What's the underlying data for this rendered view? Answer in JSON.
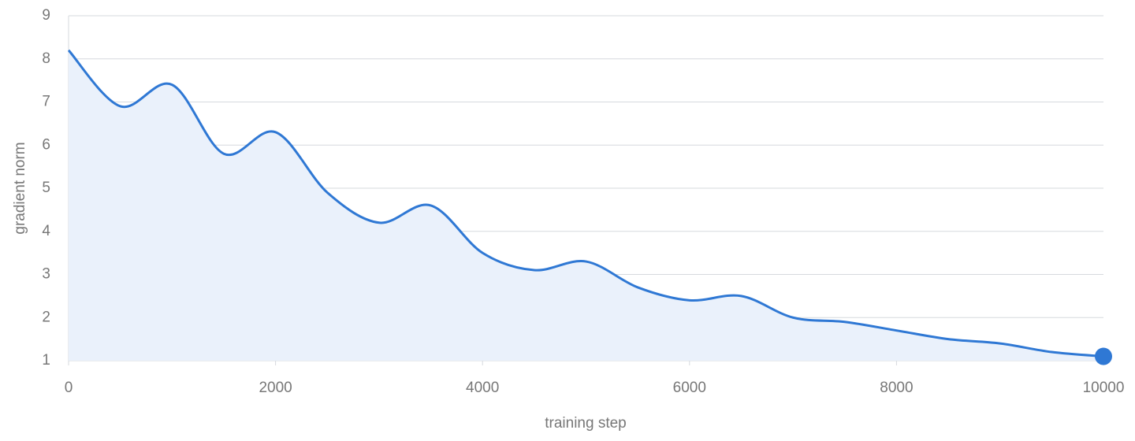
{
  "chart_data": {
    "type": "area",
    "xlabel": "training step",
    "ylabel": "gradient norm",
    "x": [
      0,
      500,
      1000,
      1500,
      2000,
      2500,
      3000,
      3500,
      4000,
      4500,
      5000,
      5500,
      6000,
      6500,
      7000,
      7500,
      8000,
      8500,
      9000,
      9500,
      10000
    ],
    "series": [
      {
        "name": "gradient norm",
        "color": "#2f78d4",
        "values": [
          8.2,
          6.9,
          7.4,
          5.8,
          6.3,
          4.9,
          4.2,
          4.6,
          3.5,
          3.1,
          3.3,
          2.7,
          2.4,
          2.5,
          2.0,
          1.9,
          1.7,
          1.5,
          1.4,
          1.2,
          1.1
        ]
      }
    ],
    "fill_color": "#eaf1fb",
    "xlim": [
      0,
      10000
    ],
    "xticks": [
      0,
      2000,
      4000,
      6000,
      8000,
      10000
    ],
    "ylim": [
      1,
      9
    ],
    "yticks": [
      1,
      2,
      3,
      4,
      5,
      6,
      7,
      8,
      9
    ],
    "grid": true
  }
}
